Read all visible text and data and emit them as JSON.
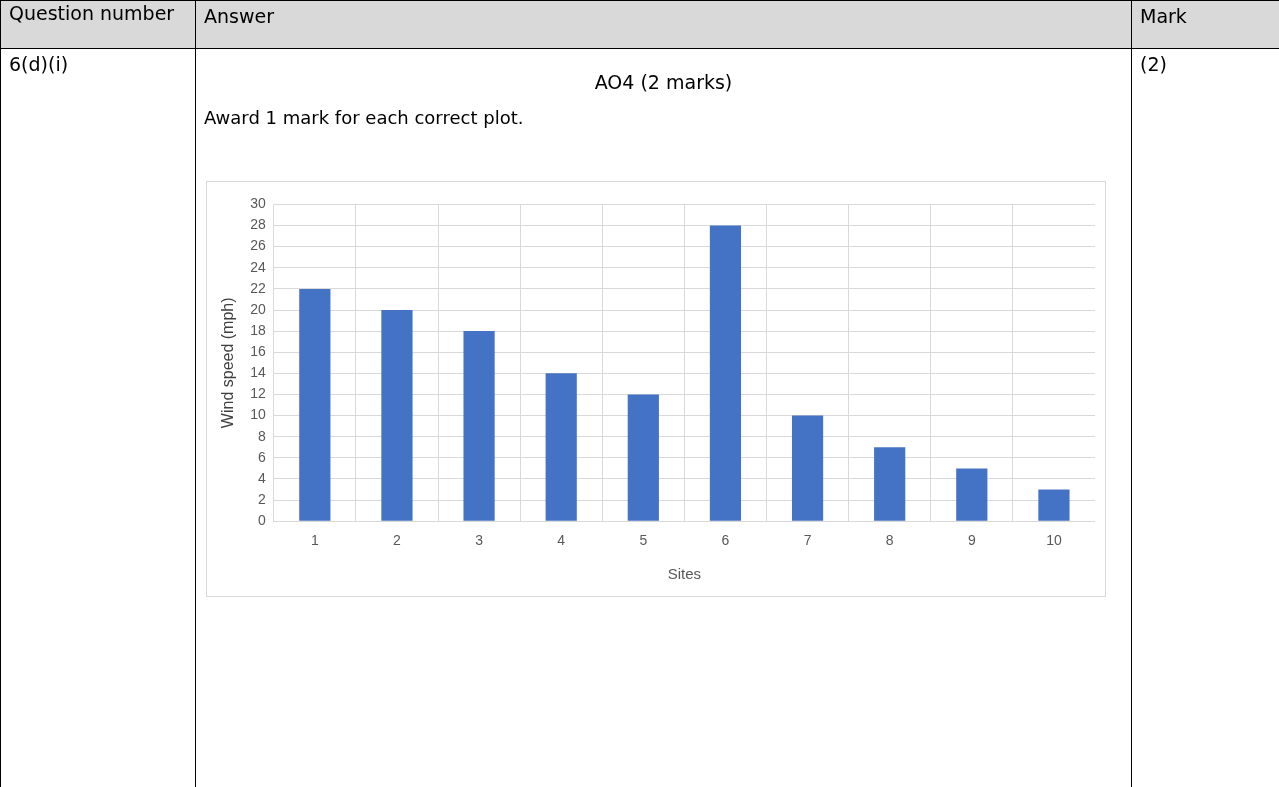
{
  "chart_data": {
    "type": "bar",
    "categories": [
      "1",
      "2",
      "3",
      "4",
      "5",
      "6",
      "7",
      "8",
      "9",
      "10"
    ],
    "values": [
      22,
      20,
      18,
      14,
      12,
      28,
      10,
      7,
      5,
      3
    ],
    "color": "#4472c4",
    "xlabel": "Sites",
    "ylabel": "Wind speed (mph)",
    "ylim": [
      0,
      30
    ],
    "yticks": [
      0,
      2,
      4,
      6,
      8,
      10,
      12,
      14,
      16,
      18,
      20,
      22,
      24,
      26,
      28,
      30
    ],
    "grid": true,
    "annotations": [
      "Question number",
      "Answer",
      "Mark",
      "6(d)(i)",
      "AO4 (2 marks)",
      "Award 1 mark for each correct plot.",
      "(2)"
    ]
  }
}
